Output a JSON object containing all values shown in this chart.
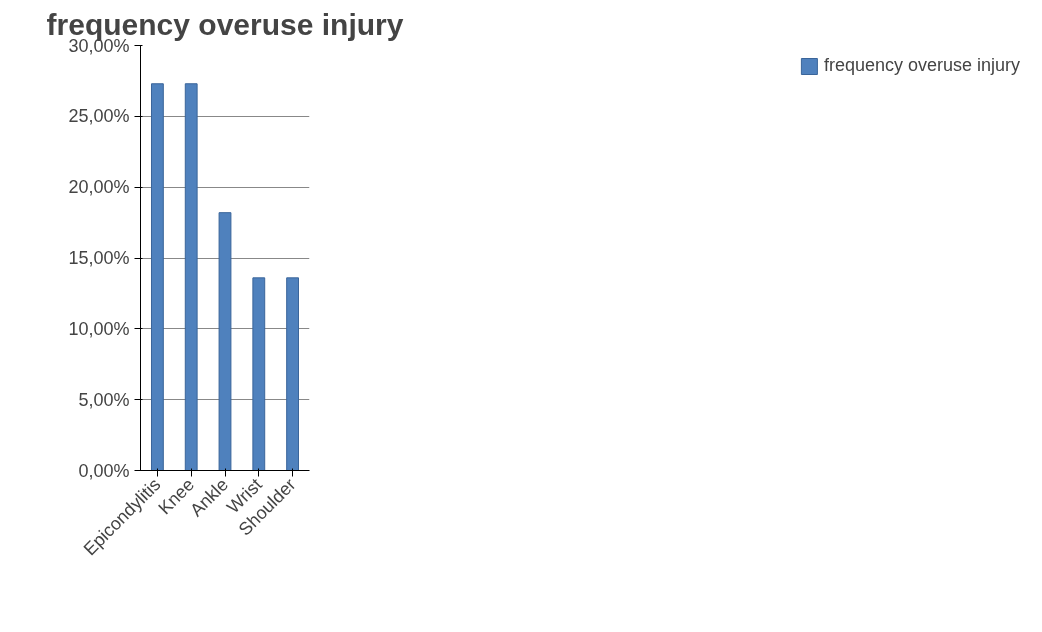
{
  "chart_data": {
    "type": "bar",
    "title": "frequency overuse injury",
    "categories": [
      "Epicondylitis",
      "Knee",
      "Ankle",
      "Wrist",
      "Shoulder"
    ],
    "series": [
      {
        "name": "frequency overuse injury",
        "color": "#4f81bd",
        "values": [
          27.3,
          27.3,
          18.2,
          13.6,
          13.6
        ]
      }
    ],
    "ylim": [
      0,
      30
    ],
    "yticks": [
      {
        "value": 0,
        "label": "0,00%"
      },
      {
        "value": 5,
        "label": "5,00%"
      },
      {
        "value": 10,
        "label": "10,00%"
      },
      {
        "value": 15,
        "label": "15,00%"
      },
      {
        "value": 20,
        "label": "20,00%"
      },
      {
        "value": 25,
        "label": "25,00%"
      },
      {
        "value": 30,
        "label": "30,00%"
      }
    ],
    "grid": "y",
    "legend": "right"
  }
}
